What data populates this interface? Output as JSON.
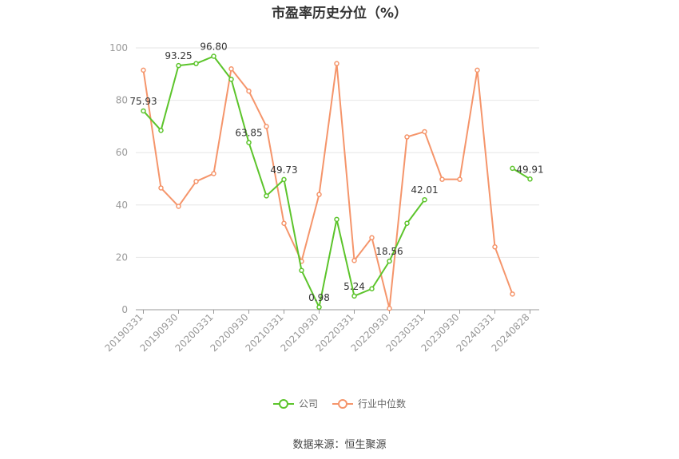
{
  "chart_data": {
    "type": "line",
    "title": "市盈率历史分位（%）",
    "ylim": [
      0,
      100
    ],
    "yticks": [
      0,
      20,
      40,
      60,
      80,
      100
    ],
    "x": [
      "20190331",
      "20190630",
      "20190930",
      "20191231",
      "20200331",
      "20200630",
      "20200930",
      "20201231",
      "20210331",
      "20210630",
      "20210930",
      "20211231",
      "20220331",
      "20220630",
      "20220930",
      "20221231",
      "20230331",
      "20230630",
      "20230930",
      "20231231",
      "20240331",
      "20240630",
      "20240828"
    ],
    "xtick_labels": [
      "20190331",
      "20190930",
      "20200331",
      "20200930",
      "20210331",
      "20210930",
      "20220331",
      "20220930",
      "20230331",
      "20230930",
      "20240331",
      "20240828"
    ],
    "series": [
      {
        "name": "公司",
        "color": "#5cc42b",
        "values": [
          75.93,
          68.5,
          93.25,
          94.0,
          96.8,
          88.0,
          63.85,
          43.5,
          49.73,
          15.0,
          0.98,
          34.5,
          5.24,
          8.0,
          18.56,
          33.0,
          42.01,
          null,
          null,
          null,
          null,
          54.0,
          49.91
        ],
        "labels": {
          "0": "75.93",
          "2": "93.25",
          "4": "96.80",
          "6": "63.85",
          "8": "49.73",
          "10": "0.98",
          "12": "5.24",
          "14": "18.56",
          "16": "42.01",
          "22": "49.91"
        }
      },
      {
        "name": "行业中位数",
        "color": "#f5956b",
        "values": [
          91.5,
          46.5,
          39.5,
          49.0,
          52.0,
          92.0,
          83.5,
          70.0,
          33.0,
          18.5,
          44.0,
          94.0,
          18.8,
          27.5,
          0.5,
          66.0,
          68.0,
          49.8,
          49.8,
          91.5,
          24.0,
          6.0,
          null
        ]
      }
    ],
    "grid": true,
    "legend": "bottom-center"
  },
  "source_text": "数据来源：恒生聚源"
}
